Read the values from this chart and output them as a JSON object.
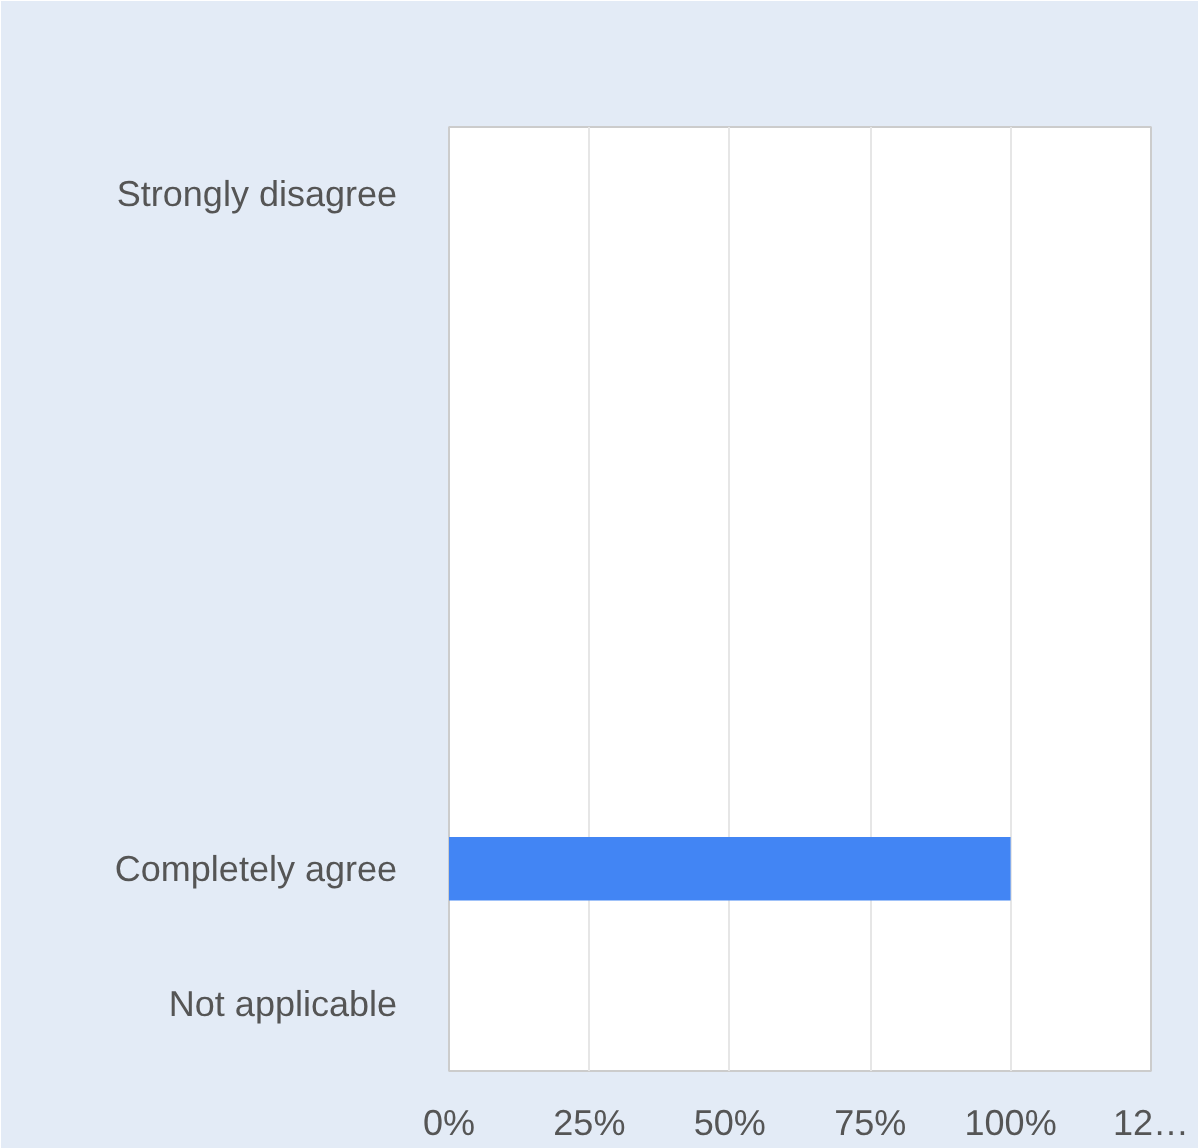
{
  "chart_data": {
    "type": "bar",
    "orientation": "horizontal",
    "categories": [
      "Strongly disagree",
      null,
      null,
      null,
      null,
      "Completely agree",
      "Not applicable"
    ],
    "values": [
      0,
      0,
      0,
      0,
      0,
      100,
      0
    ],
    "color": "#4285f4",
    "xlim": [
      0,
      125
    ],
    "xticks": [
      {
        "value": 0,
        "label": "0%"
      },
      {
        "value": 25,
        "label": "25%"
      },
      {
        "value": 50,
        "label": "50%"
      },
      {
        "value": 75,
        "label": "75%"
      },
      {
        "value": 100,
        "label": "100%"
      },
      {
        "value": 125,
        "label": "12…"
      }
    ],
    "grid": "x"
  }
}
